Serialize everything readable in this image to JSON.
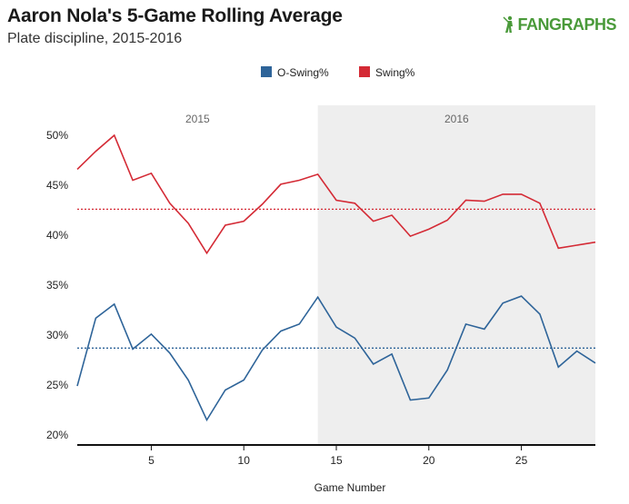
{
  "header": {
    "title": "Aaron Nola's 5-Game Rolling Average",
    "subtitle": "Plate discipline, 2015-2016",
    "logo_text": "FANGRAPHS",
    "logo_icon": "batter-silhouette-icon"
  },
  "colors": {
    "o_swing": "#2e6499",
    "swing": "#d42a35",
    "shade": "#eeeeee",
    "logo": "#4a9a3a"
  },
  "chart_data": {
    "type": "line",
    "title": "Aaron Nola's 5-Game Rolling Average",
    "subtitle": "Plate discipline, 2015-2016",
    "xlabel": "Game Number",
    "ylabel": "",
    "xlim": [
      1,
      29
    ],
    "ylim": [
      19,
      53
    ],
    "x_ticks": [
      5,
      10,
      15,
      20,
      25
    ],
    "y_ticks": [
      20,
      25,
      30,
      35,
      40,
      45,
      50
    ],
    "y_tick_format": "percent",
    "legend_position": "top-center",
    "periods": [
      {
        "label": "2015",
        "x_start": 1,
        "x_end": 14,
        "shaded": false
      },
      {
        "label": "2016",
        "x_start": 14,
        "x_end": 29,
        "shaded": true
      }
    ],
    "x": [
      1,
      2,
      3,
      4,
      5,
      6,
      7,
      8,
      9,
      10,
      11,
      12,
      13,
      14,
      15,
      16,
      17,
      18,
      19,
      20,
      21,
      22,
      23,
      24,
      25,
      26,
      27,
      28,
      29
    ],
    "series": [
      {
        "name": "O-Swing%",
        "color": "#2e6499",
        "mean": 28.7,
        "values": [
          24.9,
          31.7,
          33.1,
          28.6,
          30.1,
          28.2,
          25.5,
          21.5,
          24.5,
          25.5,
          28.5,
          30.4,
          31.1,
          33.8,
          30.8,
          29.7,
          27.1,
          28.1,
          23.5,
          23.7,
          26.5,
          31.1,
          30.6,
          33.2,
          33.9,
          32.1,
          26.8,
          28.4,
          27.2
        ]
      },
      {
        "name": "Swing%",
        "color": "#d42a35",
        "mean": 42.6,
        "values": [
          46.6,
          48.4,
          50.0,
          45.5,
          46.2,
          43.2,
          41.2,
          38.2,
          41.0,
          41.4,
          43.1,
          45.1,
          45.5,
          46.1,
          43.5,
          43.2,
          41.4,
          42.0,
          39.9,
          40.6,
          41.5,
          43.5,
          43.4,
          44.1,
          44.1,
          43.2,
          38.7,
          39.0,
          39.3
        ]
      }
    ]
  }
}
